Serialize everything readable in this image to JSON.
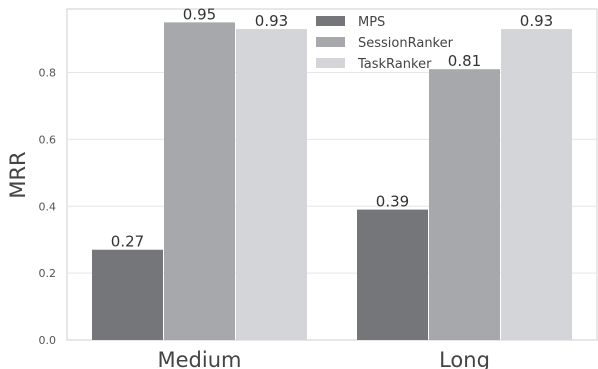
{
  "chart_data": {
    "type": "bar",
    "title": "",
    "xlabel": "",
    "ylabel": "MRR",
    "categories": [
      "Medium",
      "Long"
    ],
    "series": [
      {
        "name": "MPS",
        "values": [
          0.27,
          0.39
        ],
        "labels": [
          "0.27",
          "0.39"
        ],
        "color": "#75767a"
      },
      {
        "name": "SessionRanker",
        "values": [
          0.95,
          0.81
        ],
        "labels": [
          "0.95",
          "0.81"
        ],
        "color": "#a6a8ab"
      },
      {
        "name": "TaskRanker",
        "values": [
          0.93,
          0.93
        ],
        "labels": [
          "0.93",
          "0.93"
        ],
        "color": "#d4d5d8"
      }
    ],
    "ylim": [
      0,
      0.99
    ],
    "yticks": [
      "0.0",
      "0.2",
      "0.4",
      "0.6",
      "0.8"
    ],
    "grid": true,
    "legend_position": "top-center"
  }
}
